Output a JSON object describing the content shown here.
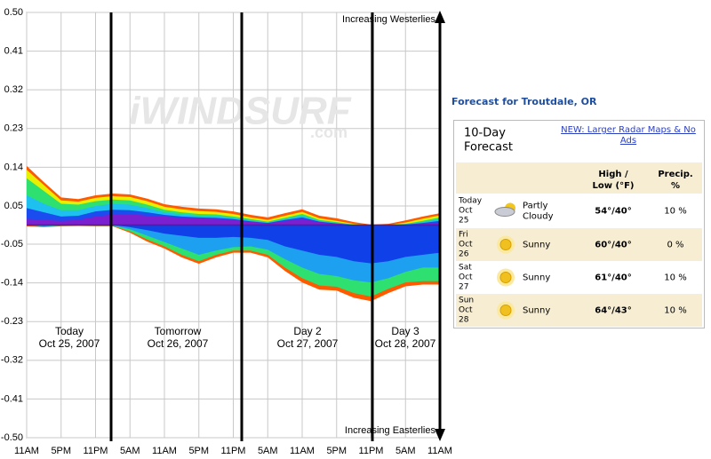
{
  "chart_data": {
    "type": "area",
    "watermark": [
      "iWINDSURF",
      ".com"
    ],
    "annotations": [
      "Increasing Westerlies",
      "Increasing Easterlies"
    ],
    "day_labels": [
      {
        "name": "Today",
        "date": "Oct 25, 2007"
      },
      {
        "name": "Tomorrow",
        "date": "Oct 26, 2007"
      },
      {
        "name": "Day 2",
        "date": "Oct 27, 2007"
      },
      {
        "name": "Day 3",
        "date": "Oct 28, 2007"
      }
    ],
    "categories": [
      "11AM",
      null,
      "5PM",
      null,
      "11PM",
      null,
      "5AM",
      null,
      "11AM",
      null,
      "5PM",
      null,
      "11PM",
      null,
      "5AM",
      null,
      "11AM",
      null,
      "5PM",
      null,
      "11PM",
      null,
      "5AM",
      null,
      "11AM"
    ],
    "ylim": [
      -0.5,
      0.5
    ],
    "yticks": [
      {
        "value": 0.5,
        "label": "0.50"
      },
      {
        "value": 0.409,
        "label": "0.41"
      },
      {
        "value": 0.318,
        "label": "0.32"
      },
      {
        "value": 0.227,
        "label": "0.23"
      },
      {
        "value": 0.136,
        "label": "0.14"
      },
      {
        "value": 0.045,
        "label": "0.05"
      },
      {
        "value": -0.045,
        "label": "-0.05"
      },
      {
        "value": -0.136,
        "label": "-0.14"
      },
      {
        "value": -0.227,
        "label": "-0.23"
      },
      {
        "value": -0.318,
        "label": "-0.32"
      },
      {
        "value": -0.409,
        "label": "-0.41"
      },
      {
        "value": -0.5,
        "label": "-0.50"
      }
    ],
    "grid": true,
    "series": [
      {
        "color": "#ff5a00",
        "values": [
          0.139,
          0.101,
          0.065,
          0.061,
          0.07,
          0.074,
          0.072,
          0.062,
          0.049,
          0.043,
          0.039,
          0.037,
          0.032,
          0.024,
          0.018,
          0.028,
          0.037,
          0.022,
          0.016,
          0.007,
          0.001,
          0.003,
          0.011,
          0.02,
          0.028
        ]
      },
      {
        "color": "#e6f000",
        "values": [
          0.13,
          0.094,
          0.058,
          0.055,
          0.064,
          0.068,
          0.066,
          0.056,
          0.043,
          0.037,
          0.033,
          0.031,
          0.026,
          0.018,
          0.012,
          0.022,
          0.031,
          0.016,
          0.01,
          0.003,
          0,
          0,
          0.006,
          0.015,
          0.023
        ]
      },
      {
        "color": "#2ee070",
        "values": [
          0.11,
          0.08,
          0.05,
          0.048,
          0.056,
          0.06,
          0.058,
          0.048,
          0.036,
          0.03,
          0.026,
          0.025,
          0.02,
          0.014,
          0.008,
          0.017,
          0.026,
          0.012,
          0.007,
          0.001,
          0,
          0,
          0.003,
          0.01,
          0.018
        ]
      },
      {
        "color": "#1ec0f0",
        "values": [
          0.07,
          0.05,
          0.035,
          0.035,
          0.045,
          0.05,
          0.048,
          0.04,
          0.03,
          0.025,
          0.022,
          0.021,
          0.017,
          0.011,
          0.006,
          0.014,
          0.022,
          0.01,
          0.005,
          0,
          0,
          0,
          0.002,
          0.007,
          0.014
        ]
      },
      {
        "color": "#1a4cf0",
        "values": [
          0.04,
          0.03,
          0.02,
          0.022,
          0.032,
          0.036,
          0.035,
          0.03,
          0.024,
          0.02,
          0.018,
          0.017,
          0.014,
          0.009,
          0.005,
          0.012,
          0.018,
          0.008,
          0.004,
          0,
          0,
          0,
          0.001,
          0.005,
          0.01
        ]
      },
      {
        "color": "#7a20d0",
        "values": [
          0.015,
          0.012,
          0.01,
          0.012,
          0.02,
          0.025,
          0.026,
          0.022,
          0.02,
          0.017,
          0.016,
          0.015,
          0.012,
          0.008,
          0.004,
          0.01,
          0.015,
          0.007,
          0.003,
          0,
          0,
          0,
          0,
          0.003,
          0.006
        ]
      },
      {
        "color": "#ff5a00",
        "values": [
          -0.003,
          -0.005,
          -0.003,
          -0.002,
          -0.003,
          -0.003,
          -0.018,
          -0.039,
          -0.055,
          -0.076,
          -0.091,
          -0.076,
          -0.065,
          -0.065,
          -0.076,
          -0.108,
          -0.135,
          -0.152,
          -0.154,
          -0.171,
          -0.179,
          -0.16,
          -0.144,
          -0.14,
          -0.14
        ]
      },
      {
        "color": "#2ee070",
        "values": [
          0,
          -0.004,
          -0.002,
          -0.001,
          -0.002,
          -0.002,
          -0.015,
          -0.034,
          -0.05,
          -0.07,
          -0.085,
          -0.07,
          -0.06,
          -0.06,
          -0.07,
          -0.1,
          -0.125,
          -0.142,
          -0.145,
          -0.16,
          -0.168,
          -0.15,
          -0.135,
          -0.132,
          -0.132
        ]
      },
      {
        "color": "#1ea0f0",
        "values": [
          0,
          -0.003,
          -0.001,
          -0.001,
          -0.001,
          -0.001,
          -0.01,
          -0.025,
          -0.04,
          -0.055,
          -0.07,
          -0.06,
          -0.052,
          -0.05,
          -0.058,
          -0.08,
          -0.1,
          -0.115,
          -0.12,
          -0.13,
          -0.135,
          -0.125,
          -0.11,
          -0.1,
          -0.1
        ]
      },
      {
        "color": "#1040e8",
        "values": [
          0,
          -0.002,
          0,
          0,
          0,
          0,
          -0.005,
          -0.012,
          -0.02,
          -0.025,
          -0.03,
          -0.03,
          -0.028,
          -0.03,
          -0.035,
          -0.05,
          -0.06,
          -0.07,
          -0.075,
          -0.085,
          -0.09,
          -0.085,
          -0.075,
          -0.07,
          -0.065
        ]
      }
    ]
  },
  "forecast": {
    "title": "Forecast for Troutdale, OR",
    "heading": [
      "10-Day",
      "Forecast"
    ],
    "link": [
      "NEW: Larger Radar Maps & No",
      "Ads"
    ],
    "columns": [
      [
        "High /",
        "Low (°F)"
      ],
      [
        "Precip.",
        "%"
      ]
    ],
    "rows": [
      {
        "day": [
          "Today",
          "Oct",
          "25"
        ],
        "condition": [
          "Partly",
          "Cloudy"
        ],
        "temp": "54°/40°",
        "precip": "10 %"
      },
      {
        "day": [
          "Fri",
          "Oct",
          "26"
        ],
        "condition": [
          "Sunny"
        ],
        "temp": "60°/40°",
        "precip": "0 %"
      },
      {
        "day": [
          "Sat",
          "Oct",
          "27"
        ],
        "condition": [
          "Sunny"
        ],
        "temp": "61°/40°",
        "precip": "10 %"
      },
      {
        "day": [
          "Sun",
          "Oct",
          "28"
        ],
        "condition": [
          "Sunny"
        ],
        "temp": "64°/43°",
        "precip": "10 %"
      }
    ]
  }
}
